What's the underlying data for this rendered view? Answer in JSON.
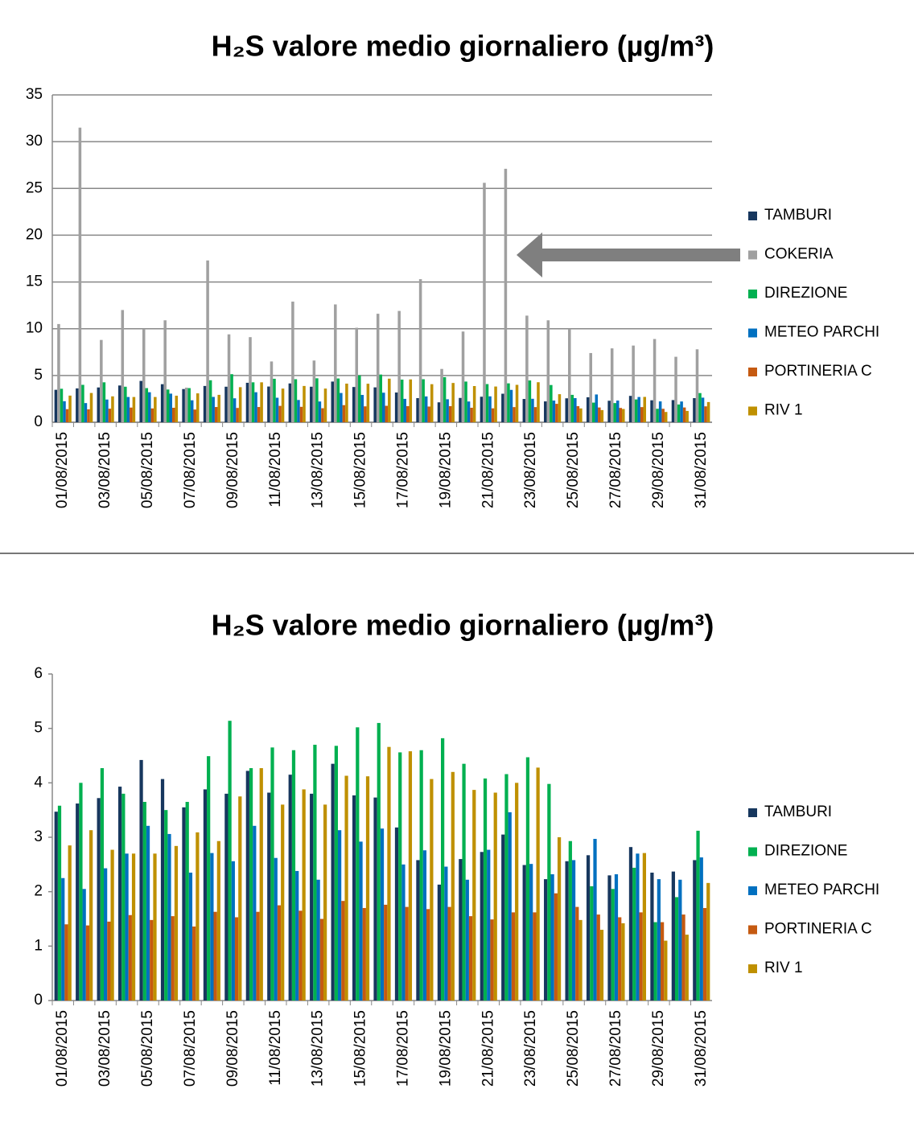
{
  "chart_data": [
    {
      "type": "bar",
      "title": "H₂S valore medio giornaliero (µg/m³)",
      "categories": [
        "01/08/2015",
        null,
        "03/08/2015",
        null,
        "05/08/2015",
        null,
        "07/08/2015",
        null,
        "09/08/2015",
        null,
        "11/08/2015",
        null,
        "13/08/2015",
        null,
        "15/08/2015",
        null,
        "17/08/2015",
        null,
        "19/08/2015",
        null,
        "21/08/2015",
        null,
        "23/08/2015",
        null,
        "25/08/2015",
        null,
        "27/08/2015",
        null,
        "29/08/2015",
        null,
        "31/08/2015"
      ],
      "series": [
        {
          "name": "TAMBURI",
          "color": "#17375e",
          "values": [
            3.47,
            3.62,
            3.72,
            3.93,
            4.42,
            4.07,
            3.55,
            3.88,
            3.8,
            4.22,
            3.82,
            4.15,
            3.8,
            4.35,
            3.77,
            3.73,
            3.18,
            2.58,
            2.13,
            2.6,
            2.73,
            3.05,
            2.49,
            2.23,
            2.56,
            2.67,
            2.3,
            2.82,
            2.35,
            2.37,
            2.58
          ]
        },
        {
          "name": "COKERIA",
          "color": "#a0a0a0",
          "values": [
            10.5,
            31.5,
            8.8,
            12.0,
            10.0,
            10.9,
            3.7,
            17.3,
            9.4,
            9.1,
            6.5,
            12.9,
            6.6,
            12.6,
            10.1,
            11.6,
            11.9,
            15.3,
            5.7,
            9.7,
            25.6,
            27.1,
            11.4,
            10.9,
            10.0,
            7.4,
            7.9,
            8.2,
            8.9,
            7.0,
            7.8
          ]
        },
        {
          "name": "DIREZIONE",
          "color": "#00b050",
          "values": [
            3.58,
            4.0,
            4.27,
            3.8,
            3.65,
            3.5,
            3.65,
            4.49,
            5.14,
            4.27,
            4.65,
            4.6,
            4.7,
            4.68,
            5.02,
            5.1,
            4.56,
            4.6,
            4.82,
            4.35,
            4.08,
            4.16,
            4.47,
            3.98,
            2.93,
            2.1,
            2.05,
            2.44,
            1.44,
            1.9,
            3.12
          ]
        },
        {
          "name": "METEO PARCHI",
          "color": "#0070c0",
          "values": [
            2.25,
            2.05,
            2.43,
            2.7,
            3.21,
            3.06,
            2.35,
            2.71,
            2.56,
            3.21,
            2.62,
            2.38,
            2.22,
            3.13,
            2.92,
            3.16,
            2.5,
            2.76,
            2.46,
            2.22,
            2.77,
            3.46,
            2.51,
            2.32,
            2.58,
            2.97,
            2.32,
            2.7,
            2.23,
            2.22,
            2.63
          ]
        },
        {
          "name": "PORTINERIA C",
          "color": "#c55a11",
          "values": [
            1.4,
            1.38,
            1.45,
            1.57,
            1.48,
            1.55,
            1.36,
            1.63,
            1.53,
            1.63,
            1.75,
            1.65,
            1.5,
            1.83,
            1.7,
            1.76,
            1.72,
            1.68,
            1.72,
            1.55,
            1.49,
            1.62,
            1.62,
            1.97,
            1.72,
            1.58,
            1.53,
            1.62,
            1.44,
            1.58,
            1.7
          ]
        },
        {
          "name": "RIV 1",
          "color": "#bf9000",
          "values": [
            2.85,
            3.13,
            2.77,
            2.7,
            2.7,
            2.84,
            3.09,
            2.93,
            3.75,
            4.27,
            3.6,
            3.88,
            3.6,
            4.13,
            4.12,
            4.66,
            4.58,
            4.07,
            4.2,
            3.87,
            3.82,
            4.0,
            4.28,
            3.0,
            1.48,
            1.3,
            1.42,
            2.71,
            1.1,
            1.21,
            2.16
          ]
        }
      ],
      "ylim": [
        0,
        35
      ],
      "yticks": [
        0,
        5,
        10,
        15,
        20,
        25,
        30,
        35
      ],
      "grid": true,
      "legend": "right"
    },
    {
      "type": "bar",
      "title": "H₂S valore medio giornaliero (µg/m³)",
      "categories": [
        "01/08/2015",
        null,
        "03/08/2015",
        null,
        "05/08/2015",
        null,
        "07/08/2015",
        null,
        "09/08/2015",
        null,
        "11/08/2015",
        null,
        "13/08/2015",
        null,
        "15/08/2015",
        null,
        "17/08/2015",
        null,
        "19/08/2015",
        null,
        "21/08/2015",
        null,
        "23/08/2015",
        null,
        "25/08/2015",
        null,
        "27/08/2015",
        null,
        "29/08/2015",
        null,
        "31/08/2015"
      ],
      "series": [
        {
          "name": "TAMBURI",
          "color": "#17375e",
          "values": [
            3.47,
            3.62,
            3.72,
            3.93,
            4.42,
            4.07,
            3.55,
            3.88,
            3.8,
            4.22,
            3.82,
            4.15,
            3.8,
            4.35,
            3.77,
            3.73,
            3.18,
            2.58,
            2.13,
            2.6,
            2.73,
            3.05,
            2.49,
            2.23,
            2.56,
            2.67,
            2.3,
            2.82,
            2.35,
            2.37,
            2.58
          ]
        },
        {
          "name": "DIREZIONE",
          "color": "#00b050",
          "values": [
            3.58,
            4.0,
            4.27,
            3.8,
            3.65,
            3.5,
            3.65,
            4.49,
            5.14,
            4.27,
            4.65,
            4.6,
            4.7,
            4.68,
            5.02,
            5.1,
            4.56,
            4.6,
            4.82,
            4.35,
            4.08,
            4.16,
            4.47,
            3.98,
            2.93,
            2.1,
            2.05,
            2.44,
            1.44,
            1.9,
            3.12
          ]
        },
        {
          "name": "METEO PARCHI",
          "color": "#0070c0",
          "values": [
            2.25,
            2.05,
            2.43,
            2.7,
            3.21,
            3.06,
            2.35,
            2.71,
            2.56,
            3.21,
            2.62,
            2.38,
            2.22,
            3.13,
            2.92,
            3.16,
            2.5,
            2.76,
            2.46,
            2.22,
            2.77,
            3.46,
            2.51,
            2.32,
            2.58,
            2.97,
            2.32,
            2.7,
            2.23,
            2.22,
            2.63
          ]
        },
        {
          "name": "PORTINERIA C",
          "color": "#c55a11",
          "values": [
            1.4,
            1.38,
            1.45,
            1.57,
            1.48,
            1.55,
            1.36,
            1.63,
            1.53,
            1.63,
            1.75,
            1.65,
            1.5,
            1.83,
            1.7,
            1.76,
            1.72,
            1.68,
            1.72,
            1.55,
            1.49,
            1.62,
            1.62,
            1.97,
            1.72,
            1.58,
            1.53,
            1.62,
            1.44,
            1.58,
            1.7
          ]
        },
        {
          "name": "RIV 1",
          "color": "#bf9000",
          "values": [
            2.85,
            3.13,
            2.77,
            2.7,
            2.7,
            2.84,
            3.09,
            2.93,
            3.75,
            4.27,
            3.6,
            3.88,
            3.6,
            4.13,
            4.12,
            4.66,
            4.58,
            4.07,
            4.2,
            3.87,
            3.82,
            4.0,
            4.28,
            3.0,
            1.48,
            1.3,
            1.42,
            2.71,
            1.1,
            1.21,
            2.16
          ]
        }
      ],
      "ylim": [
        0,
        6
      ],
      "yticks": [
        0,
        1,
        2,
        3,
        4,
        5,
        6
      ],
      "grid": false,
      "legend": "right"
    }
  ]
}
